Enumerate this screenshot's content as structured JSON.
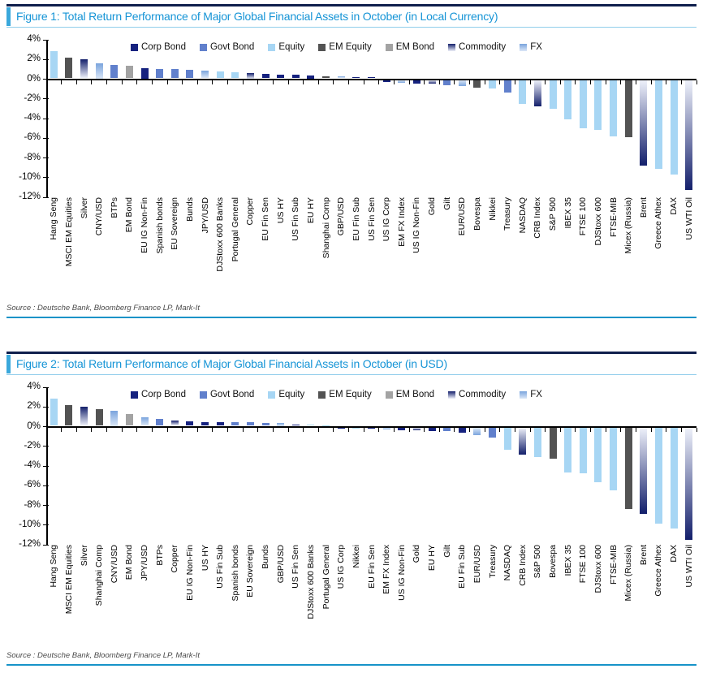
{
  "series_colors": {
    "corp_bond": {
      "type": "solid",
      "color": "#16227f"
    },
    "govt_bond": {
      "type": "solid",
      "color": "#6180cc"
    },
    "equity": {
      "type": "solid",
      "color": "#a7d6f4"
    },
    "em_equity": {
      "type": "solid",
      "color": "#535353"
    },
    "em_bond": {
      "type": "solid",
      "color": "#a3a3a3"
    },
    "commodity": {
      "type": "gradient",
      "tip": "#131f6b",
      "base": "#eef1fa"
    },
    "fx": {
      "type": "gradient",
      "tip": "#7aa4dd",
      "base": "#dbe7f7"
    }
  },
  "figures": [
    {
      "id": "figure1",
      "title": "Figure 1: Total Return Performance of Major Global Financial Assets in October (in Local Currency)",
      "source": "Source : Deutsche Bank, Bloomberg Finance LP, Mark-It",
      "chart_data": {
        "type": "bar",
        "title": "Total Return Performance of Major Global Financial Assets in October (in Local Currency)",
        "ylim": [
          -12,
          4
        ],
        "ytick_labels": [
          "4%",
          "2%",
          "0%",
          "-2%",
          "-4%",
          "-6%",
          "-8%",
          "-10%",
          "-12%"
        ],
        "grid": false,
        "legend_position": "top",
        "legend": [
          {
            "name": "Corp Bond",
            "series": "corp_bond"
          },
          {
            "name": "Govt Bond",
            "series": "govt_bond"
          },
          {
            "name": "Equity",
            "series": "equity"
          },
          {
            "name": "EM Equity",
            "series": "em_equity"
          },
          {
            "name": "EM Bond",
            "series": "em_bond"
          },
          {
            "name": "Commodity",
            "series": "commodity"
          },
          {
            "name": "FX",
            "series": "fx"
          }
        ],
        "points": [
          {
            "label": "Hang Seng",
            "series": "equity",
            "value": 2.8
          },
          {
            "label": "MSCI EM Equities",
            "series": "em_equity",
            "value": 2.1
          },
          {
            "label": "Silver",
            "series": "commodity",
            "value": 1.9
          },
          {
            "label": "CNY/USD",
            "series": "fx",
            "value": 1.5
          },
          {
            "label": "BTPs",
            "series": "govt_bond",
            "value": 1.35
          },
          {
            "label": "EM Bond",
            "series": "em_bond",
            "value": 1.3
          },
          {
            "label": "EU IG Non-Fin",
            "series": "corp_bond",
            "value": 1.0
          },
          {
            "label": "Spanish bonds",
            "series": "govt_bond",
            "value": 0.95
          },
          {
            "label": "EU Sovereign",
            "series": "govt_bond",
            "value": 0.95
          },
          {
            "label": "Bunds",
            "series": "govt_bond",
            "value": 0.9
          },
          {
            "label": "JPY/USD",
            "series": "fx",
            "value": 0.8
          },
          {
            "label": "DJStoxx 600 Banks",
            "series": "equity",
            "value": 0.7
          },
          {
            "label": "Portugal General",
            "series": "equity",
            "value": 0.6
          },
          {
            "label": "Copper",
            "series": "commodity",
            "value": 0.5
          },
          {
            "label": "EU Fin Sen",
            "series": "corp_bond",
            "value": 0.45
          },
          {
            "label": "US HY",
            "series": "corp_bond",
            "value": 0.4
          },
          {
            "label": "US Fin Sub",
            "series": "corp_bond",
            "value": 0.35
          },
          {
            "label": "EU HY",
            "series": "corp_bond",
            "value": 0.25
          },
          {
            "label": "Shanghai Comp",
            "series": "em_equity",
            "value": 0.2
          },
          {
            "label": "GBP/USD",
            "series": "fx",
            "value": 0.2
          },
          {
            "label": "EU Fin Sub",
            "series": "corp_bond",
            "value": 0.15
          },
          {
            "label": "US Fin Sen",
            "series": "corp_bond",
            "value": 0.1
          },
          {
            "label": "US IG Corp",
            "series": "corp_bond",
            "value": -0.2
          },
          {
            "label": "EM FX Index",
            "series": "fx",
            "value": -0.3
          },
          {
            "label": "US IG Non-Fin",
            "series": "corp_bond",
            "value": -0.35
          },
          {
            "label": "Gold",
            "series": "commodity",
            "value": -0.4
          },
          {
            "label": "Gilt",
            "series": "govt_bond",
            "value": -0.5
          },
          {
            "label": "EUR/USD",
            "series": "fx",
            "value": -0.6
          },
          {
            "label": "Bovespa",
            "series": "em_equity",
            "value": -0.75
          },
          {
            "label": "Nikkei",
            "series": "equity",
            "value": -0.9
          },
          {
            "label": "Treasury",
            "series": "govt_bond",
            "value": -1.3
          },
          {
            "label": "NASDAQ",
            "series": "equity",
            "value": -2.4
          },
          {
            "label": "CRB Index",
            "series": "commodity",
            "value": -2.7
          },
          {
            "label": "S&P 500",
            "series": "equity",
            "value": -2.9
          },
          {
            "label": "IBEX 35",
            "series": "equity",
            "value": -4.0
          },
          {
            "label": "FTSE 100",
            "series": "equity",
            "value": -4.9
          },
          {
            "label": "DJStoxx 600",
            "series": "equity",
            "value": -5.1
          },
          {
            "label": "FTSE-MIB",
            "series": "equity",
            "value": -5.7
          },
          {
            "label": "Micex (Russia)",
            "series": "em_equity",
            "value": -5.8
          },
          {
            "label": "Brent",
            "series": "commodity",
            "value": -8.7
          },
          {
            "label": "Greece Athex",
            "series": "equity",
            "value": -9.0
          },
          {
            "label": "DAX",
            "series": "equity",
            "value": -9.6
          },
          {
            "label": "US WTI Oil",
            "series": "commodity",
            "value": -11.2
          }
        ]
      }
    },
    {
      "id": "figure2",
      "title": "Figure 2: Total Return Performance of Major Global Financial Assets in October (in USD)",
      "source": "Source : Deutsche Bank, Bloomberg Finance LP, Mark-It",
      "chart_data": {
        "type": "bar",
        "title": "Total Return Performance of Major Global Financial Assets in October (in USD)",
        "ylim": [
          -12,
          4
        ],
        "ytick_labels": [
          "4%",
          "2%",
          "0%",
          "-2%",
          "-4%",
          "-6%",
          "-8%",
          "-10%",
          "-12%"
        ],
        "grid": false,
        "legend_position": "top",
        "legend": [
          {
            "name": "Corp Bond",
            "series": "corp_bond"
          },
          {
            "name": "Govt Bond",
            "series": "govt_bond"
          },
          {
            "name": "Equity",
            "series": "equity"
          },
          {
            "name": "EM Equity",
            "series": "em_equity"
          },
          {
            "name": "EM Bond",
            "series": "em_bond"
          },
          {
            "name": "Commodity",
            "series": "commodity"
          },
          {
            "name": "FX",
            "series": "fx"
          }
        ],
        "points": [
          {
            "label": "Hang Seng",
            "series": "equity",
            "value": 2.8
          },
          {
            "label": "MSCI EM Equities",
            "series": "em_equity",
            "value": 2.1
          },
          {
            "label": "Silver",
            "series": "commodity",
            "value": 1.9
          },
          {
            "label": "Shanghai Comp",
            "series": "em_equity",
            "value": 1.7
          },
          {
            "label": "CNY/USD",
            "series": "fx",
            "value": 1.5
          },
          {
            "label": "EM Bond",
            "series": "em_bond",
            "value": 1.2
          },
          {
            "label": "JPY/USD",
            "series": "fx",
            "value": 0.85
          },
          {
            "label": "BTPs",
            "series": "govt_bond",
            "value": 0.7
          },
          {
            "label": "Copper",
            "series": "commodity",
            "value": 0.55
          },
          {
            "label": "EU IG Non-Fin",
            "series": "corp_bond",
            "value": 0.45
          },
          {
            "label": "US HY",
            "series": "corp_bond",
            "value": 0.4
          },
          {
            "label": "US Fin Sub",
            "series": "corp_bond",
            "value": 0.38
          },
          {
            "label": "Spanish bonds",
            "series": "govt_bond",
            "value": 0.36
          },
          {
            "label": "EU Sovereign",
            "series": "govt_bond",
            "value": 0.33
          },
          {
            "label": "Bunds",
            "series": "govt_bond",
            "value": 0.3
          },
          {
            "label": "GBP/USD",
            "series": "fx",
            "value": 0.25
          },
          {
            "label": "US Fin Sen",
            "series": "corp_bond",
            "value": 0.15
          },
          {
            "label": "DJStoxx 600 Banks",
            "series": "equity",
            "value": 0.1
          },
          {
            "label": "Portugal General",
            "series": "equity",
            "value": 0.05
          },
          {
            "label": "US IG Corp",
            "series": "corp_bond",
            "value": -0.05
          },
          {
            "label": "Nikkei",
            "series": "equity",
            "value": -0.1
          },
          {
            "label": "EU Fin Sen",
            "series": "corp_bond",
            "value": -0.15
          },
          {
            "label": "EM FX Index",
            "series": "fx",
            "value": -0.2
          },
          {
            "label": "US IG Non-Fin",
            "series": "corp_bond",
            "value": -0.25
          },
          {
            "label": "Gold",
            "series": "commodity",
            "value": -0.3
          },
          {
            "label": "EU HY",
            "series": "corp_bond",
            "value": -0.35
          },
          {
            "label": "Gilt",
            "series": "govt_bond",
            "value": -0.4
          },
          {
            "label": "EU Fin Sub",
            "series": "corp_bond",
            "value": -0.5
          },
          {
            "label": "EUR/USD",
            "series": "fx",
            "value": -0.75
          },
          {
            "label": "Treasury",
            "series": "govt_bond",
            "value": -1.05
          },
          {
            "label": "NASDAQ",
            "series": "equity",
            "value": -2.3
          },
          {
            "label": "CRB Index",
            "series": "commodity",
            "value": -2.75
          },
          {
            "label": "S&P 500",
            "series": "equity",
            "value": -3.0
          },
          {
            "label": "Bovespa",
            "series": "em_equity",
            "value": -3.2
          },
          {
            "label": "IBEX 35",
            "series": "equity",
            "value": -4.6
          },
          {
            "label": "FTSE 100",
            "series": "equity",
            "value": -4.7
          },
          {
            "label": "DJStoxx 600",
            "series": "equity",
            "value": -5.6
          },
          {
            "label": "FTSE-MIB",
            "series": "equity",
            "value": -6.4
          },
          {
            "label": "Micex (Russia)",
            "series": "em_equity",
            "value": -8.3
          },
          {
            "label": "Brent",
            "series": "commodity",
            "value": -8.8
          },
          {
            "label": "Greece Athex",
            "series": "equity",
            "value": -9.8
          },
          {
            "label": "DAX",
            "series": "equity",
            "value": -10.3
          },
          {
            "label": "US WTI Oil",
            "series": "commodity",
            "value": -11.4
          }
        ]
      }
    }
  ]
}
